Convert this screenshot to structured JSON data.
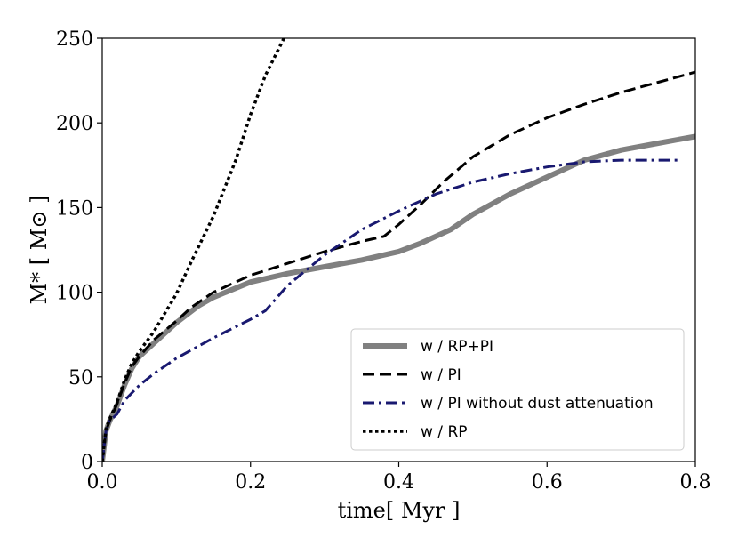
{
  "chart_data": {
    "type": "line",
    "title": "",
    "xlabel": "time[ Myr ]",
    "ylabel": "M* [ M⊙ ]",
    "xlim": [
      0.0,
      0.8
    ],
    "ylim": [
      0,
      250
    ],
    "x_ticks": [
      0.0,
      0.2,
      0.4,
      0.6,
      0.8
    ],
    "x_tick_labels": [
      "0.0",
      "0.2",
      "0.4",
      "0.6",
      "0.8"
    ],
    "y_ticks": [
      0,
      50,
      100,
      150,
      200,
      250
    ],
    "y_tick_labels": [
      "0",
      "50",
      "100",
      "150",
      "200",
      "250"
    ],
    "grid": false,
    "legend_position": "lower-right",
    "series": [
      {
        "name": "w / RP+PI",
        "color": "#808080",
        "style": "solid-thick",
        "x": [
          0.0,
          0.005,
          0.01,
          0.02,
          0.03,
          0.04,
          0.05,
          0.07,
          0.1,
          0.13,
          0.15,
          0.2,
          0.25,
          0.3,
          0.35,
          0.4,
          0.43,
          0.47,
          0.5,
          0.55,
          0.6,
          0.65,
          0.7,
          0.75,
          0.8
        ],
        "y": [
          0,
          18,
          24,
          33,
          45,
          55,
          62,
          70,
          82,
          92,
          97,
          106,
          111,
          115,
          119,
          124,
          129,
          137,
          146,
          158,
          168,
          178,
          184,
          188,
          192
        ]
      },
      {
        "name": "w / PI",
        "color": "#000000",
        "style": "dashed",
        "x": [
          0.0,
          0.005,
          0.01,
          0.02,
          0.03,
          0.04,
          0.05,
          0.07,
          0.1,
          0.12,
          0.15,
          0.2,
          0.25,
          0.3,
          0.35,
          0.38,
          0.4,
          0.43,
          0.46,
          0.5,
          0.55,
          0.6,
          0.65,
          0.7,
          0.75,
          0.8
        ],
        "y": [
          0,
          18,
          24,
          34,
          46,
          56,
          62,
          72,
          83,
          91,
          100,
          110,
          117,
          124,
          130,
          133,
          140,
          152,
          165,
          180,
          193,
          203,
          211,
          218,
          224,
          230
        ]
      },
      {
        "name": "w / PI without dust attenuation",
        "color": "#191970",
        "style": "dashdot",
        "x": [
          0.0,
          0.005,
          0.01,
          0.02,
          0.03,
          0.05,
          0.07,
          0.1,
          0.15,
          0.2,
          0.22,
          0.25,
          0.3,
          0.35,
          0.4,
          0.45,
          0.5,
          0.55,
          0.6,
          0.65,
          0.7,
          0.78
        ],
        "y": [
          0,
          18,
          24,
          28,
          36,
          45,
          52,
          61,
          73,
          84,
          89,
          104,
          122,
          137,
          148,
          158,
          165,
          170,
          174,
          177,
          178,
          178
        ]
      },
      {
        "name": "w / RP",
        "color": "#000000",
        "style": "dotted",
        "x": [
          0.0,
          0.005,
          0.01,
          0.02,
          0.03,
          0.04,
          0.05,
          0.07,
          0.1,
          0.12,
          0.15,
          0.18,
          0.2,
          0.22,
          0.245
        ],
        "y": [
          0,
          19,
          25,
          35,
          48,
          58,
          65,
          77,
          99,
          118,
          145,
          178,
          205,
          228,
          250
        ]
      }
    ]
  }
}
